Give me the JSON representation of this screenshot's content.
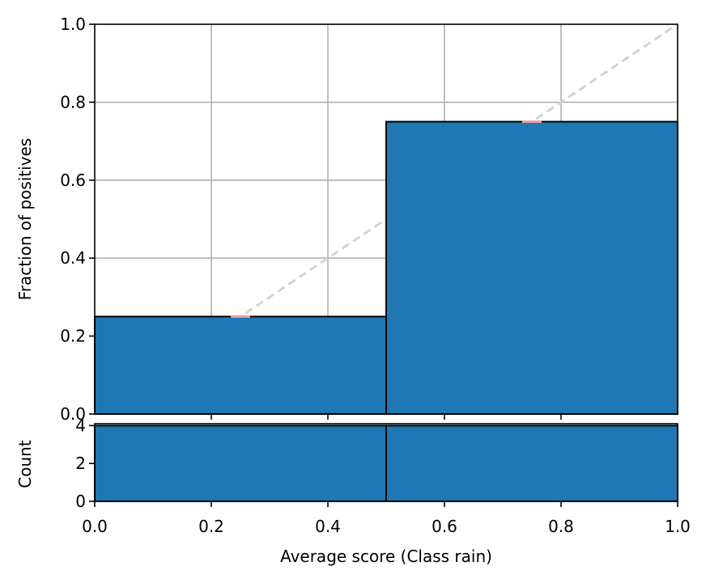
{
  "chart_data": [
    {
      "type": "bar",
      "panel": "reliability",
      "xlabel": "",
      "ylabel": "Fraction of positives",
      "xlim": [
        0.0,
        1.0
      ],
      "ylim": [
        0.0,
        1.0
      ],
      "grid": true,
      "bins": [
        {
          "x0": 0.0,
          "x1": 0.5,
          "value": 0.25
        },
        {
          "x0": 0.5,
          "x1": 1.0,
          "value": 0.75
        }
      ],
      "bin_mean_scores": [
        0.25,
        0.75
      ],
      "diagonal": {
        "from": [
          0,
          0
        ],
        "to": [
          1,
          1
        ],
        "style": "dashed",
        "color": "#d3d3d3"
      },
      "yticks": [
        0.0,
        0.2,
        0.4,
        0.6,
        0.8,
        1.0
      ],
      "ytick_labels": [
        "0.0",
        "0.2",
        "0.4",
        "0.6",
        "0.8",
        "1.0"
      ],
      "xticks": [
        0.2,
        0.4,
        0.6,
        0.8
      ],
      "colors": {
        "bar": "#1f77b4",
        "edge": "#000000",
        "marker": "#e8a0a0",
        "grid": "#b0b0b0"
      }
    },
    {
      "type": "bar",
      "panel": "count",
      "xlabel": "Average score (Class rain)",
      "ylabel": "Count",
      "xlim": [
        0.0,
        1.0
      ],
      "ylim": [
        0,
        4.1
      ],
      "bins": [
        {
          "x0": 0.0,
          "x1": 0.5,
          "value": 4
        },
        {
          "x0": 0.5,
          "x1": 1.0,
          "value": 4
        }
      ],
      "yticks": [
        0,
        2,
        4
      ],
      "ytick_labels": [
        "0",
        "2",
        "4"
      ],
      "xticks": [
        0.0,
        0.2,
        0.4,
        0.6,
        0.8,
        1.0
      ],
      "xtick_labels": [
        "0.0",
        "0.2",
        "0.4",
        "0.6",
        "0.8",
        "1.0"
      ],
      "colors": {
        "bar": "#1f77b4",
        "edge": "#000000"
      }
    }
  ]
}
